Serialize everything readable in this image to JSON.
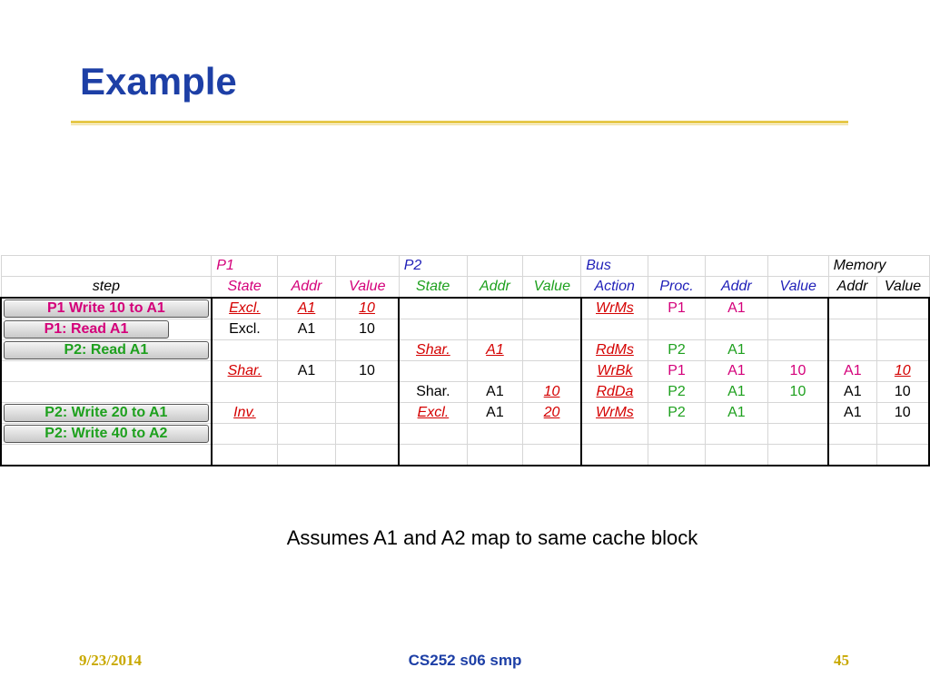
{
  "slide": {
    "title": "Example",
    "note": "Assumes A1 and A2 map to same cache block",
    "footer": {
      "date": "9/23/2014",
      "center": "CS252 s06 smp",
      "page": "45"
    }
  },
  "table": {
    "group_headers": {
      "p1": "P1",
      "p2": "P2",
      "bus": "Bus",
      "memory": "Memory"
    },
    "sub_headers": {
      "step": "step",
      "p1_state": "State",
      "p1_addr": "Addr",
      "p1_value": "Value",
      "p2_state": "State",
      "p2_addr": "Addr",
      "p2_value": "Value",
      "bus_action": "Action",
      "bus_proc": "Proc.",
      "bus_addr": "Addr",
      "bus_value": "Value",
      "mem_addr": "Addr",
      "mem_value": "Value"
    },
    "steps": {
      "r1": "P1 Write 10 to A1",
      "r2": "P1: Read A1",
      "r3": "P2: Read A1",
      "r6": "P2: Write 20 to A1",
      "r7": "P2: Write 40 to A2"
    },
    "rows": {
      "r1": {
        "p1_state": "Excl.",
        "p1_addr": "A1",
        "p1_value": "10",
        "bus_action": "WrMs",
        "bus_proc": "P1",
        "bus_addr": "A1"
      },
      "r2": {
        "p1_state": "Excl.",
        "p1_addr": "A1",
        "p1_value": "10"
      },
      "r3": {
        "p2_state": "Shar.",
        "p2_addr": "A1",
        "bus_action": "RdMs",
        "bus_proc": "P2",
        "bus_addr": "A1"
      },
      "r4": {
        "p1_state": "Shar.",
        "p1_addr": "A1",
        "p1_value": "10",
        "bus_action": "WrBk",
        "bus_proc": "P1",
        "bus_addr": "A1",
        "bus_value": "10",
        "mem_addr": "A1",
        "mem_value": "10"
      },
      "r5": {
        "p2_state": "Shar.",
        "p2_addr": "A1",
        "p2_value": "10",
        "bus_action": "RdDa",
        "bus_proc": "P2",
        "bus_addr": "A1",
        "bus_value": "10",
        "mem_addr": "A1",
        "mem_value": "10"
      },
      "r6": {
        "p1_state": "Inv.",
        "p2_state": "Excl.",
        "p2_addr": "A1",
        "p2_value": "20",
        "bus_action": "WrMs",
        "bus_proc": "P2",
        "bus_addr": "A1",
        "mem_addr": "A1",
        "mem_value": "10"
      }
    }
  },
  "colors": {
    "title": "#1d3fa6",
    "rule": "#e6c84a",
    "p1": "#d4007a",
    "p2": "#1ea01e",
    "bus": "#1f1fb8",
    "changed": "#d40000",
    "footer_gold": "#c8a800"
  }
}
